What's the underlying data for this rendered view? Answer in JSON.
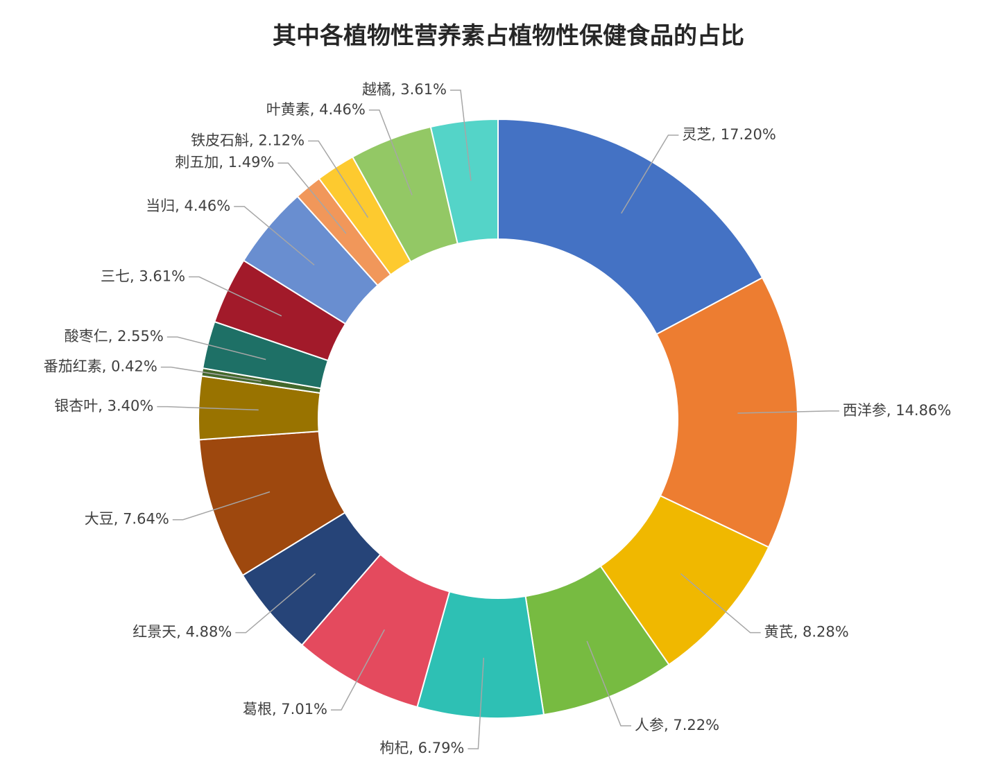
{
  "chart_data": {
    "type": "donut",
    "title": "其中各植物性营养素占植物性保健食品的占比",
    "values": [
      17.2,
      14.86,
      8.28,
      7.22,
      6.79,
      7.01,
      4.88,
      7.64,
      3.4,
      0.42,
      2.55,
      3.61,
      4.46,
      1.49,
      2.12,
      4.46,
      3.61
    ],
    "value_labels": [
      "灵芝, 17.20%",
      "西洋参, 14.86%",
      "黄芪, 8.28%",
      "人参, 7.22%",
      "枸杞, 6.79%",
      "葛根, 7.01%",
      "红景天, 4.88%",
      "大豆, 7.64%",
      "银杏叶, 3.40%",
      "番茄红素, 0.42%",
      "酸枣仁, 2.55%",
      "三七, 3.61%",
      "当归, 4.46%",
      "刺五加, 1.49%",
      "铁皮石斛, 2.12%",
      "叶黄素, 4.46%",
      "越橘, 3.61%"
    ],
    "colors": [
      "#4472c4",
      "#ed7d31",
      "#f0b800",
      "#77bb41",
      "#2ec0b4",
      "#e44a5e",
      "#264478",
      "#9e480e",
      "#997300",
      "#43682b",
      "#1e7066",
      "#a21a2a",
      "#698ed0",
      "#f1975a",
      "#fdca2f",
      "#93c865",
      "#54d4c8"
    ]
  }
}
